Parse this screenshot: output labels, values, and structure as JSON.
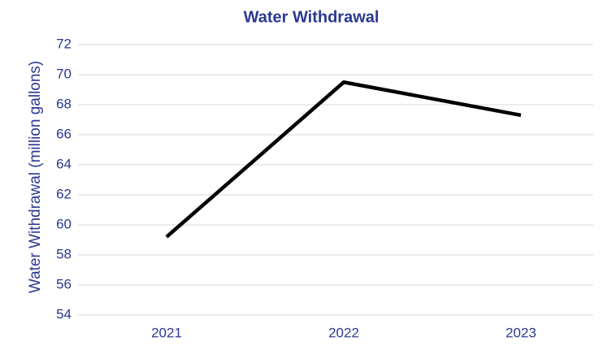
{
  "chart_data": {
    "type": "line",
    "title": "Water Withdrawal",
    "ylabel": "Water Withdrawal (million gallons)",
    "categories": [
      "2021",
      "2022",
      "2023"
    ],
    "values": [
      59.2,
      69.5,
      67.3
    ],
    "color": "#000000",
    "ylim": [
      54,
      72
    ],
    "yticks": [
      54,
      56,
      58,
      60,
      62,
      64,
      66,
      68,
      70,
      72
    ],
    "grid": true
  }
}
